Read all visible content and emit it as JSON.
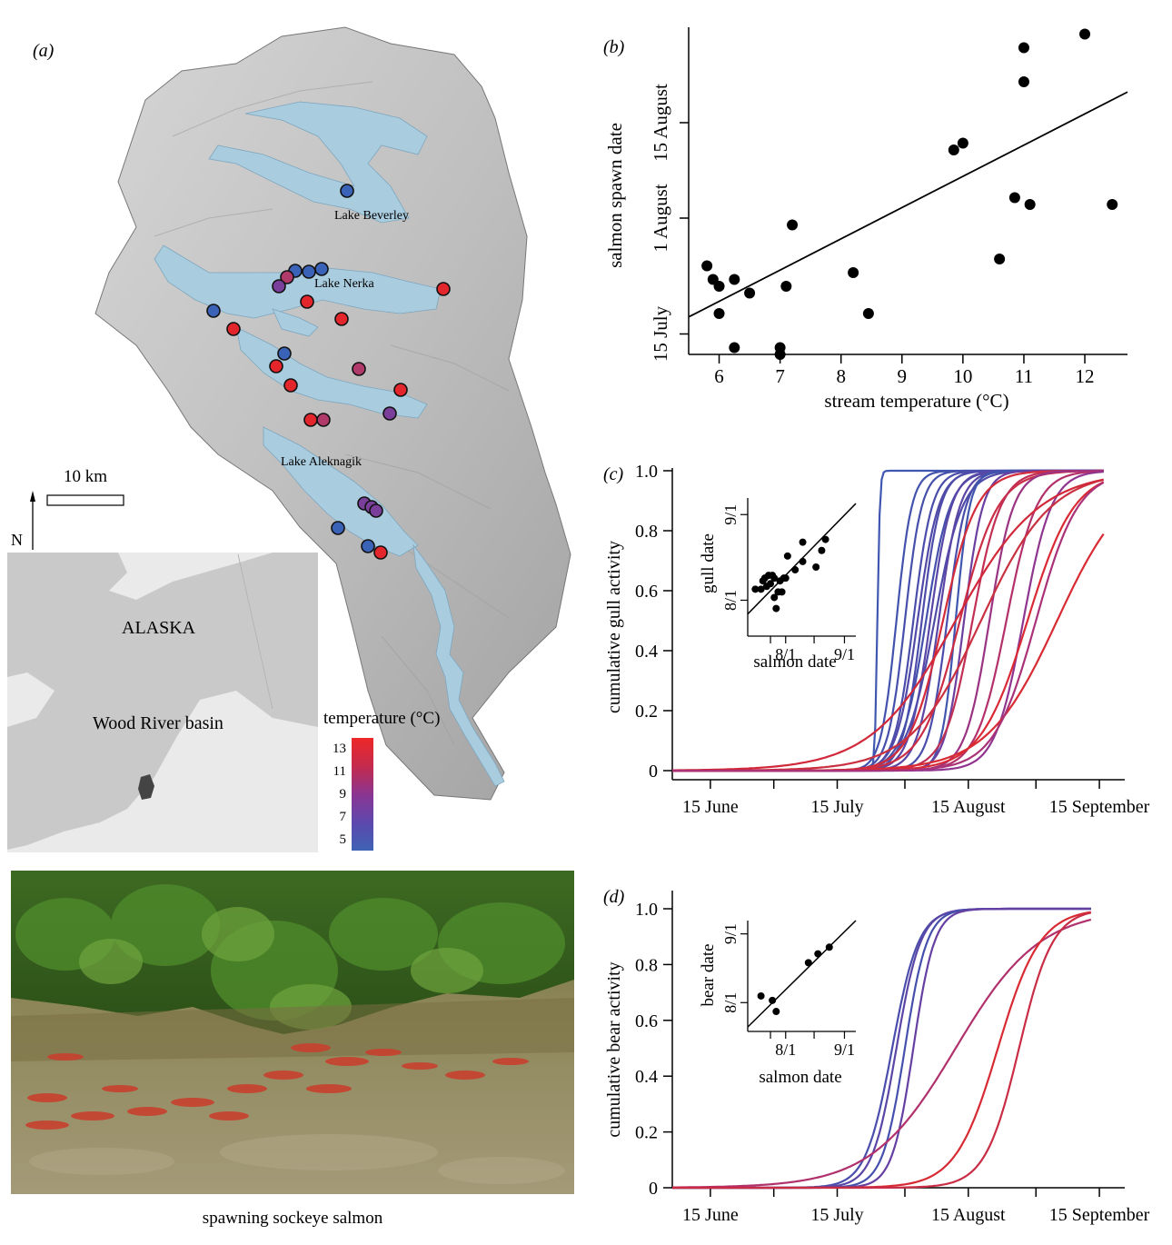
{
  "panel_a": {
    "label": "(a)",
    "lakes": [
      "Lake Beverley",
      "Lake Nerka",
      "Lake Aleknagik"
    ],
    "scale_bar": "10 km",
    "north": "N",
    "inset": {
      "region": "ALASKA",
      "basin": "Wood River basin"
    },
    "legend": {
      "title": "temperature (°C)",
      "ticks": [
        "13",
        "11",
        "9",
        "7",
        "5"
      ],
      "colors": [
        "#e8262b",
        "#c42a4a",
        "#8c3592",
        "#5f46ae",
        "#3e5fb3"
      ]
    },
    "site_colors": {
      "cold": "#3a62b6",
      "cool": "#7a3f9b",
      "mid": "#b03a6a",
      "warm": "#e3262c"
    },
    "photo_caption": "spawning sockeye salmon"
  },
  "chart_data": [
    {
      "id": "b",
      "label": "(b)",
      "type": "scatter",
      "xlabel": "stream temperature (°C)",
      "ylabel": "salmon spawn date",
      "xlim": [
        5.5,
        12.7
      ],
      "xticks": [
        6,
        7,
        8,
        9,
        10,
        11,
        12
      ],
      "yticks": [
        {
          "day": 196,
          "label": "15 July"
        },
        {
          "day": 213,
          "label": "1 August"
        },
        {
          "day": 227,
          "label": "15 August"
        }
      ],
      "ylim": [
        193,
        241
      ],
      "points": [
        [
          5.8,
          206
        ],
        [
          5.9,
          204
        ],
        [
          6.0,
          203
        ],
        [
          6.0,
          199
        ],
        [
          6.25,
          204
        ],
        [
          6.25,
          194
        ],
        [
          6.5,
          202
        ],
        [
          7.0,
          194
        ],
        [
          7.0,
          193
        ],
        [
          7.1,
          203
        ],
        [
          7.2,
          212
        ],
        [
          8.2,
          205
        ],
        [
          8.45,
          199
        ],
        [
          9.85,
          223
        ],
        [
          10.0,
          224
        ],
        [
          10.6,
          207
        ],
        [
          10.85,
          216
        ],
        [
          11.0,
          233
        ],
        [
          11.0,
          238
        ],
        [
          11.1,
          215
        ],
        [
          12.0,
          240
        ],
        [
          12.45,
          215
        ]
      ],
      "fit": [
        [
          5.5,
          198.5
        ],
        [
          12.7,
          231.5
        ]
      ]
    },
    {
      "id": "c",
      "label": "(c)",
      "type": "line",
      "ylabel": "cumulative gull activity",
      "xticks": [
        {
          "day": 166,
          "label": "15 June"
        },
        {
          "day": 196,
          "label": "15 July"
        },
        {
          "day": 227,
          "label": "15 August"
        },
        {
          "day": 258,
          "label": "15 September"
        }
      ],
      "yticks": [
        "0",
        "0.2",
        "0.4",
        "0.6",
        "0.8",
        "1.0"
      ],
      "xlim": [
        157,
        264
      ],
      "series": [
        {
          "mid": 205.5,
          "k": 3.5,
          "color": "#3f57b0"
        },
        {
          "mid": 210,
          "k": 0.55,
          "color": "#4252ad"
        },
        {
          "mid": 212,
          "k": 0.5,
          "color": "#4650ab"
        },
        {
          "mid": 214,
          "k": 0.45,
          "color": "#4a4eaa"
        },
        {
          "mid": 215,
          "k": 0.4,
          "color": "#5149a8"
        },
        {
          "mid": 216,
          "k": 0.45,
          "color": "#4d4caa"
        },
        {
          "mid": 217,
          "k": 0.35,
          "color": "#4450ac"
        },
        {
          "mid": 218,
          "k": 0.4,
          "color": "#5a46a6"
        },
        {
          "mid": 219,
          "k": 0.3,
          "color": "#4f4ca9"
        },
        {
          "mid": 220,
          "k": 0.4,
          "color": "#5b45a5"
        },
        {
          "mid": 222,
          "k": 0.45,
          "color": "#4a4eaa"
        },
        {
          "mid": 224,
          "k": 0.6,
          "color": "#3f55ae"
        },
        {
          "mid": 226,
          "k": 0.45,
          "color": "#6b3fa0"
        },
        {
          "mid": 221,
          "k": 0.25,
          "color": "#d42c3a"
        },
        {
          "mid": 225,
          "k": 0.22,
          "color": "#cb2d45"
        },
        {
          "mid": 228,
          "k": 0.3,
          "color": "#c22f55"
        },
        {
          "mid": 232,
          "k": 0.35,
          "color": "#9b3383"
        },
        {
          "mid": 236,
          "k": 0.28,
          "color": "#b3306a"
        },
        {
          "mid": 240,
          "k": 0.3,
          "color": "#8f3590"
        },
        {
          "mid": 241,
          "k": 0.18,
          "color": "#d92a35"
        },
        {
          "mid": 230,
          "k": 0.12,
          "color": "#c93140"
        },
        {
          "mid": 224,
          "k": 0.1,
          "color": "#d1283a"
        },
        {
          "mid": 248,
          "k": 0.12,
          "color": "#d82b33"
        },
        {
          "mid": 243,
          "k": 0.2,
          "color": "#a93278"
        }
      ]
    },
    {
      "id": "c-inset",
      "type": "scatter",
      "xlabel": "salmon date",
      "ylabel": "gull date",
      "xticks": [
        {
          "v": 213,
          "label": "8/1"
        },
        {
          "v": 244,
          "label": "9/1"
        }
      ],
      "yticks": [
        {
          "v": 213,
          "label": "8/1"
        },
        {
          "v": 244,
          "label": "9/1"
        }
      ],
      "xlim": [
        193,
        250
      ],
      "ylim": [
        200,
        250
      ],
      "points": [
        [
          197,
          217
        ],
        [
          200,
          217
        ],
        [
          201,
          220
        ],
        [
          202,
          221
        ],
        [
          203,
          218
        ],
        [
          204,
          222
        ],
        [
          205,
          219
        ],
        [
          206,
          222
        ],
        [
          207,
          221
        ],
        [
          207,
          214
        ],
        [
          208,
          210
        ],
        [
          209,
          216
        ],
        [
          210,
          220
        ],
        [
          211,
          216
        ],
        [
          212,
          221
        ],
        [
          213,
          221
        ],
        [
          214,
          229
        ],
        [
          218,
          224
        ],
        [
          222,
          227
        ],
        [
          222,
          234
        ],
        [
          229,
          225
        ],
        [
          232,
          231
        ],
        [
          234,
          235
        ]
      ],
      "fit": [
        [
          193,
          208
        ],
        [
          250,
          248
        ]
      ]
    },
    {
      "id": "d",
      "label": "(d)",
      "type": "line",
      "ylabel": "cumulative bear activity",
      "xticks": [
        {
          "day": 166,
          "label": "15 June"
        },
        {
          "day": 196,
          "label": "15 July"
        },
        {
          "day": 227,
          "label": "15 August"
        },
        {
          "day": 258,
          "label": "15 September"
        }
      ],
      "yticks": [
        "0",
        "0.2",
        "0.4",
        "0.6",
        "0.8",
        "1.0"
      ],
      "xlim": [
        157,
        264
      ],
      "series": [
        {
          "mid": 209,
          "k": 0.32,
          "color": "#4a4dab"
        },
        {
          "mid": 210,
          "k": 0.35,
          "color": "#5a46a6"
        },
        {
          "mid": 212,
          "k": 0.38,
          "color": "#4550ad"
        },
        {
          "mid": 214,
          "k": 0.4,
          "color": "#6540a2"
        },
        {
          "mid": 224,
          "k": 0.1,
          "color": "#b0316c"
        },
        {
          "mid": 234,
          "k": 0.2,
          "color": "#d82a33"
        },
        {
          "mid": 239,
          "k": 0.25,
          "color": "#c92d45"
        }
      ]
    },
    {
      "id": "d-inset",
      "type": "scatter",
      "xlabel": "salmon date",
      "ylabel": "bear date",
      "xticks": [
        {
          "v": 213,
          "label": "8/1"
        },
        {
          "v": 244,
          "label": "9/1"
        }
      ],
      "yticks": [
        {
          "v": 213,
          "label": "8/1"
        },
        {
          "v": 244,
          "label": "9/1"
        }
      ],
      "xlim": [
        193,
        250
      ],
      "ylim": [
        200,
        250
      ],
      "points": [
        [
          200,
          216
        ],
        [
          206,
          214
        ],
        [
          208,
          209
        ],
        [
          225,
          231
        ],
        [
          230,
          235
        ],
        [
          236,
          238
        ]
      ],
      "fit": [
        [
          193,
          202
        ],
        [
          250,
          250
        ]
      ]
    }
  ]
}
